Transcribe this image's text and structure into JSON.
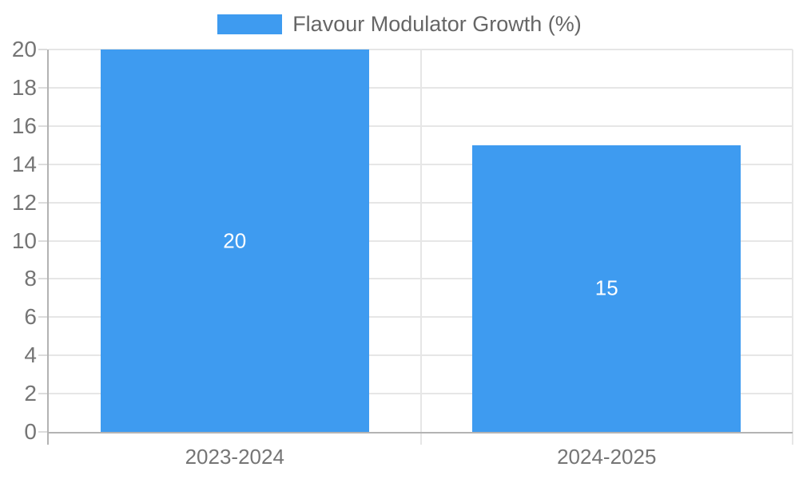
{
  "legend": {
    "label": "Flavour Modulator Growth (%)"
  },
  "colors": {
    "bar": "#3E9BF0",
    "grid": "#e6e6e6",
    "axis": "#b3b3b3",
    "tick_text": "#757575",
    "legend_text": "#666666",
    "bar_label": "#ffffff",
    "background": "#ffffff"
  },
  "chart_data": {
    "type": "bar",
    "categories": [
      "2023-2024",
      "2024-2025"
    ],
    "series": [
      {
        "name": "Flavour Modulator Growth (%)",
        "values": [
          20,
          15
        ]
      }
    ],
    "bar_labels": [
      "20",
      "15"
    ],
    "title": "",
    "xlabel": "",
    "ylabel": "",
    "ylim": [
      0,
      20
    ],
    "ytick_step": 2,
    "yticks": [
      0,
      2,
      4,
      6,
      8,
      10,
      12,
      14,
      16,
      18,
      20
    ],
    "grid": true,
    "legend_position": "top"
  }
}
